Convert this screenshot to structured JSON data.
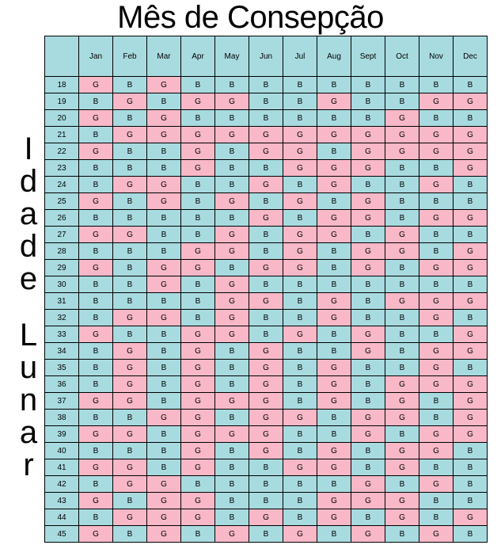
{
  "title": "Mês de Consepção",
  "side_label": "Idade Lunar",
  "colors": {
    "girl": "#f8b8c8",
    "boy": "#a8dbe0"
  },
  "months": [
    "Jan",
    "Feb",
    "Mar",
    "Apr",
    "May",
    "Jun",
    "Jul",
    "Aug",
    "Sept",
    "Oct",
    "Nov",
    "Dec"
  ],
  "rows": [
    {
      "age": "18",
      "cells": [
        "G",
        "B",
        "G",
        "B",
        "B",
        "B",
        "B",
        "B",
        "B",
        "B",
        "B",
        "B"
      ]
    },
    {
      "age": "19",
      "cells": [
        "B",
        "G",
        "B",
        "G",
        "G",
        "B",
        "B",
        "G",
        "B",
        "B",
        "G",
        "G"
      ]
    },
    {
      "age": "20",
      "cells": [
        "G",
        "B",
        "G",
        "B",
        "B",
        "B",
        "B",
        "B",
        "B",
        "G",
        "B",
        "B"
      ]
    },
    {
      "age": "21",
      "cells": [
        "B",
        "G",
        "G",
        "G",
        "G",
        "G",
        "G",
        "G",
        "G",
        "G",
        "G",
        "G"
      ]
    },
    {
      "age": "22",
      "cells": [
        "G",
        "B",
        "B",
        "G",
        "B",
        "G",
        "G",
        "B",
        "G",
        "G",
        "G",
        "G"
      ]
    },
    {
      "age": "23",
      "cells": [
        "B",
        "B",
        "B",
        "G",
        "B",
        "B",
        "G",
        "G",
        "G",
        "B",
        "B",
        "G"
      ]
    },
    {
      "age": "24",
      "cells": [
        "B",
        "G",
        "G",
        "B",
        "B",
        "G",
        "B",
        "G",
        "B",
        "B",
        "G",
        "B"
      ]
    },
    {
      "age": "25",
      "cells": [
        "G",
        "B",
        "G",
        "B",
        "G",
        "B",
        "G",
        "B",
        "G",
        "B",
        "B",
        "B"
      ]
    },
    {
      "age": "26",
      "cells": [
        "B",
        "B",
        "B",
        "B",
        "B",
        "G",
        "B",
        "G",
        "G",
        "B",
        "G",
        "G"
      ]
    },
    {
      "age": "27",
      "cells": [
        "G",
        "G",
        "B",
        "B",
        "G",
        "B",
        "G",
        "G",
        "B",
        "G",
        "B",
        "B"
      ]
    },
    {
      "age": "28",
      "cells": [
        "B",
        "B",
        "B",
        "G",
        "G",
        "B",
        "G",
        "B",
        "G",
        "G",
        "B",
        "G"
      ]
    },
    {
      "age": "29",
      "cells": [
        "G",
        "B",
        "G",
        "G",
        "B",
        "G",
        "G",
        "B",
        "G",
        "B",
        "G",
        "G"
      ]
    },
    {
      "age": "30",
      "cells": [
        "B",
        "B",
        "G",
        "B",
        "G",
        "B",
        "B",
        "B",
        "B",
        "B",
        "B",
        "B"
      ]
    },
    {
      "age": "31",
      "cells": [
        "B",
        "B",
        "B",
        "B",
        "G",
        "G",
        "B",
        "G",
        "B",
        "G",
        "G",
        "G"
      ]
    },
    {
      "age": "32",
      "cells": [
        "B",
        "G",
        "G",
        "B",
        "G",
        "B",
        "B",
        "G",
        "B",
        "B",
        "G",
        "B"
      ]
    },
    {
      "age": "33",
      "cells": [
        "G",
        "B",
        "B",
        "G",
        "G",
        "B",
        "G",
        "B",
        "G",
        "B",
        "B",
        "G"
      ]
    },
    {
      "age": "34",
      "cells": [
        "B",
        "G",
        "B",
        "G",
        "B",
        "G",
        "B",
        "B",
        "G",
        "B",
        "G",
        "G"
      ]
    },
    {
      "age": "35",
      "cells": [
        "B",
        "G",
        "B",
        "G",
        "B",
        "G",
        "B",
        "G",
        "B",
        "B",
        "G",
        "B"
      ]
    },
    {
      "age": "36",
      "cells": [
        "B",
        "G",
        "B",
        "G",
        "B",
        "G",
        "B",
        "G",
        "B",
        "G",
        "G",
        "G"
      ]
    },
    {
      "age": "37",
      "cells": [
        "G",
        "G",
        "B",
        "G",
        "G",
        "G",
        "B",
        "G",
        "B",
        "G",
        "B",
        "G"
      ]
    },
    {
      "age": "38",
      "cells": [
        "B",
        "B",
        "G",
        "G",
        "B",
        "G",
        "G",
        "B",
        "G",
        "G",
        "B",
        "G"
      ]
    },
    {
      "age": "39",
      "cells": [
        "G",
        "G",
        "B",
        "G",
        "G",
        "G",
        "B",
        "B",
        "G",
        "B",
        "G",
        "G"
      ]
    },
    {
      "age": "40",
      "cells": [
        "B",
        "B",
        "B",
        "G",
        "B",
        "G",
        "B",
        "G",
        "B",
        "G",
        "G",
        "B"
      ]
    },
    {
      "age": "41",
      "cells": [
        "G",
        "G",
        "B",
        "G",
        "B",
        "B",
        "G",
        "G",
        "B",
        "G",
        "B",
        "B"
      ]
    },
    {
      "age": "42",
      "cells": [
        "B",
        "G",
        "G",
        "B",
        "B",
        "B",
        "B",
        "B",
        "G",
        "B",
        "G",
        "B"
      ]
    },
    {
      "age": "43",
      "cells": [
        "G",
        "B",
        "G",
        "G",
        "B",
        "B",
        "B",
        "G",
        "G",
        "G",
        "B",
        "B"
      ]
    },
    {
      "age": "44",
      "cells": [
        "B",
        "G",
        "G",
        "G",
        "B",
        "G",
        "B",
        "G",
        "B",
        "G",
        "B",
        "G"
      ]
    },
    {
      "age": "45",
      "cells": [
        "G",
        "B",
        "G",
        "B",
        "G",
        "B",
        "G",
        "B",
        "G",
        "B",
        "G",
        "B"
      ]
    }
  ]
}
